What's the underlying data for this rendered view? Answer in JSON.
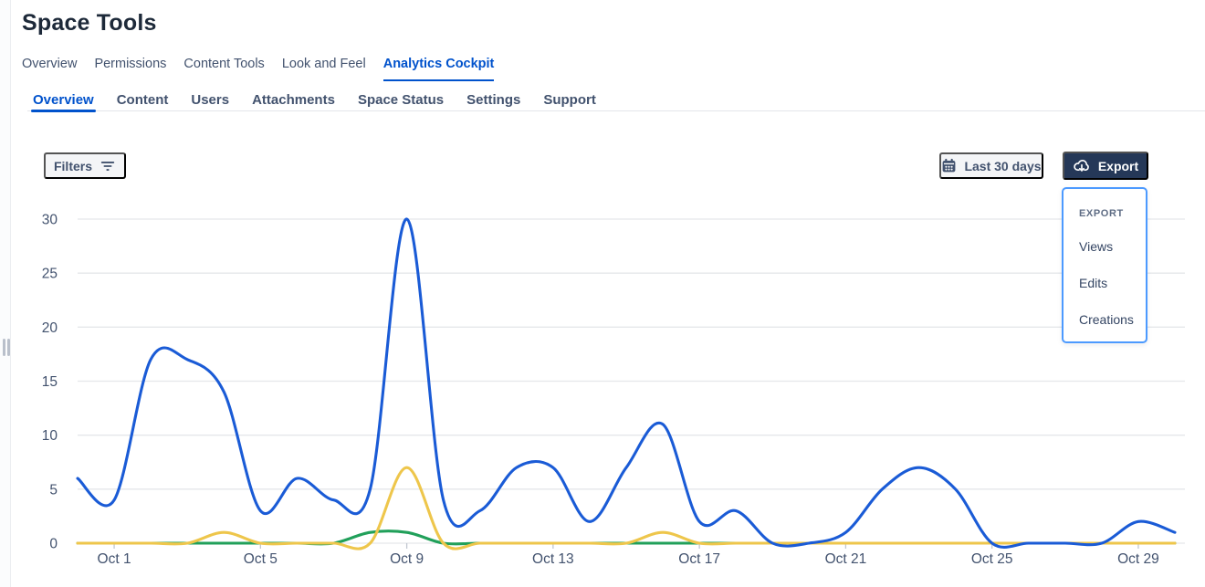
{
  "page": {
    "title": "Space Tools"
  },
  "top_tabs": {
    "items": [
      "Overview",
      "Permissions",
      "Content Tools",
      "Look and Feel",
      "Analytics Cockpit"
    ],
    "active": "Analytics Cockpit"
  },
  "sub_tabs": {
    "items": [
      "Overview",
      "Content",
      "Users",
      "Attachments",
      "Space Status",
      "Settings",
      "Support"
    ],
    "active": "Overview"
  },
  "toolbar": {
    "filters_label": "Filters",
    "date_range_label": "Last 30 days",
    "export_label": "Export"
  },
  "export_menu": {
    "heading": "EXPORT",
    "items": [
      "Views",
      "Edits",
      "Creations"
    ]
  },
  "icons": {
    "filter": "filter-lines-icon",
    "calendar": "calendar-icon",
    "export": "cloud-download-icon",
    "rail": "drag-handle-icon"
  },
  "colors": {
    "accent_blue": "#0052CC",
    "export_button": "#253858",
    "dropdown_border": "#4C9AFF",
    "subtle_button_bg": "#f4f5f7",
    "text_gray": "#42526E",
    "grid_line": "#e5e7ea",
    "series_views": "#1A5BD6",
    "series_edits": "#EEC64B",
    "series_creations": "#21A05A"
  },
  "chart_data": {
    "type": "line",
    "smooth": true,
    "title": "",
    "xlabel": "",
    "ylabel": "",
    "legend": "none",
    "grid": "horizontal",
    "ylim": [
      0,
      30
    ],
    "y_ticks": [
      0,
      5,
      10,
      15,
      20,
      25,
      30
    ],
    "x_categories": [
      "Sep 30",
      "Oct 1",
      "Oct 2",
      "Oct 3",
      "Oct 4",
      "Oct 5",
      "Oct 6",
      "Oct 7",
      "Oct 8",
      "Oct 9",
      "Oct 10",
      "Oct 11",
      "Oct 12",
      "Oct 13",
      "Oct 14",
      "Oct 15",
      "Oct 16",
      "Oct 17",
      "Oct 18",
      "Oct 19",
      "Oct 20",
      "Oct 21",
      "Oct 22",
      "Oct 23",
      "Oct 24",
      "Oct 25",
      "Oct 26",
      "Oct 27",
      "Oct 28",
      "Oct 29",
      "Oct 30"
    ],
    "x_ticks": [
      {
        "index": 1,
        "label": "Oct 1"
      },
      {
        "index": 5,
        "label": "Oct 5"
      },
      {
        "index": 9,
        "label": "Oct 9"
      },
      {
        "index": 13,
        "label": "Oct 13"
      },
      {
        "index": 17,
        "label": "Oct 17"
      },
      {
        "index": 21,
        "label": "Oct 21"
      },
      {
        "index": 25,
        "label": "Oct 25"
      },
      {
        "index": 29,
        "label": "Oct 29"
      }
    ],
    "series": [
      {
        "name": "Views",
        "color": "#1A5BD6",
        "values": [
          6,
          4,
          17,
          17,
          14,
          3,
          6,
          4,
          5,
          30,
          4,
          3,
          7,
          7,
          2,
          7,
          11,
          2,
          3,
          0,
          0,
          1,
          5,
          7,
          5,
          0,
          0,
          0,
          0,
          2,
          1
        ]
      },
      {
        "name": "Edits",
        "color": "#EEC64B",
        "values": [
          0,
          0,
          0,
          0,
          1,
          0,
          0,
          0,
          0,
          7,
          0,
          0,
          0,
          0,
          0,
          0,
          1,
          0,
          0,
          0,
          0,
          0,
          0,
          0,
          0,
          0,
          0,
          0,
          0,
          0,
          0
        ]
      },
      {
        "name": "Creations",
        "color": "#21A05A",
        "values": [
          0,
          0,
          0,
          0,
          0,
          0,
          0,
          0,
          1,
          1,
          0,
          0,
          0,
          0,
          0,
          0,
          0,
          0,
          0,
          0,
          0,
          0,
          0,
          0,
          0,
          0,
          0,
          0,
          0,
          0,
          0
        ]
      }
    ]
  }
}
